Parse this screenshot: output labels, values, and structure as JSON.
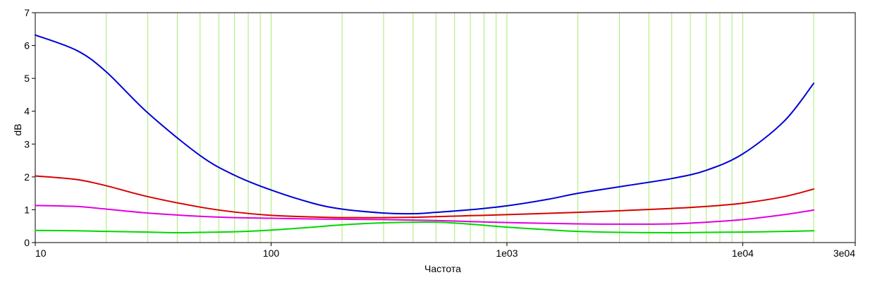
{
  "chart_data": {
    "type": "line",
    "title": "",
    "xlabel": "Частота",
    "ylabel": "dB",
    "x_scale": "log",
    "xlim": [
      10,
      30000
    ],
    "ylim": [
      0,
      7
    ],
    "grid": true,
    "x_ticks": [
      {
        "value": 10,
        "label": "10"
      },
      {
        "value": 100,
        "label": "100"
      },
      {
        "value": 1000,
        "label": "1e03"
      },
      {
        "value": 10000,
        "label": "1e04"
      },
      {
        "value": 30000,
        "label": "3e04"
      }
    ],
    "y_ticks": [
      {
        "value": 0,
        "label": "0"
      },
      {
        "value": 1,
        "label": "1"
      },
      {
        "value": 2,
        "label": "2"
      },
      {
        "value": 3,
        "label": "3"
      },
      {
        "value": 4,
        "label": "4"
      },
      {
        "value": 5,
        "label": "5"
      },
      {
        "value": 6,
        "label": "6"
      },
      {
        "value": 7,
        "label": "7"
      }
    ],
    "x_grid_lines": [
      10,
      20,
      30,
      40,
      50,
      60,
      70,
      80,
      90,
      100,
      200,
      300,
      400,
      500,
      600,
      700,
      800,
      900,
      1000,
      2000,
      3000,
      4000,
      5000,
      6000,
      7000,
      8000,
      9000,
      10000,
      20000
    ],
    "series": [
      {
        "color": "#0000d8",
        "x": [
          10,
          15,
          20,
          30,
          50,
          70,
          100,
          150,
          200,
          300,
          400,
          500,
          700,
          1000,
          1500,
          2000,
          3000,
          5000,
          7000,
          10000,
          15000,
          20000
        ],
        "y": [
          6.32,
          5.85,
          5.2,
          3.95,
          2.65,
          2.05,
          1.6,
          1.2,
          1.02,
          0.9,
          0.88,
          0.92,
          1.0,
          1.12,
          1.32,
          1.5,
          1.7,
          1.95,
          2.2,
          2.7,
          3.7,
          4.85
        ]
      },
      {
        "color": "#d80000",
        "x": [
          10,
          15,
          20,
          30,
          50,
          70,
          100,
          150,
          200,
          300,
          400,
          500,
          700,
          1000,
          2000,
          3000,
          5000,
          7000,
          10000,
          15000,
          20000
        ],
        "y": [
          2.03,
          1.92,
          1.73,
          1.4,
          1.08,
          0.93,
          0.83,
          0.78,
          0.76,
          0.76,
          0.77,
          0.79,
          0.82,
          0.85,
          0.92,
          0.97,
          1.04,
          1.1,
          1.2,
          1.4,
          1.63
        ]
      },
      {
        "color": "#e000e0",
        "x": [
          10,
          15,
          20,
          30,
          50,
          70,
          100,
          150,
          200,
          300,
          500,
          700,
          1000,
          2000,
          3000,
          5000,
          7000,
          10000,
          15000,
          20000
        ],
        "y": [
          1.13,
          1.1,
          1.02,
          0.9,
          0.8,
          0.76,
          0.74,
          0.72,
          0.71,
          0.7,
          0.67,
          0.64,
          0.61,
          0.57,
          0.56,
          0.57,
          0.62,
          0.7,
          0.85,
          0.99
        ]
      },
      {
        "color": "#00d800",
        "x": [
          10,
          15,
          20,
          30,
          40,
          50,
          70,
          100,
          150,
          200,
          300,
          500,
          700,
          1000,
          1500,
          2000,
          3000,
          5000,
          7000,
          10000,
          15000,
          20000
        ],
        "y": [
          0.37,
          0.36,
          0.34,
          0.32,
          0.3,
          0.31,
          0.33,
          0.38,
          0.47,
          0.54,
          0.6,
          0.62,
          0.56,
          0.47,
          0.39,
          0.34,
          0.31,
          0.3,
          0.31,
          0.32,
          0.34,
          0.36
        ]
      }
    ]
  }
}
